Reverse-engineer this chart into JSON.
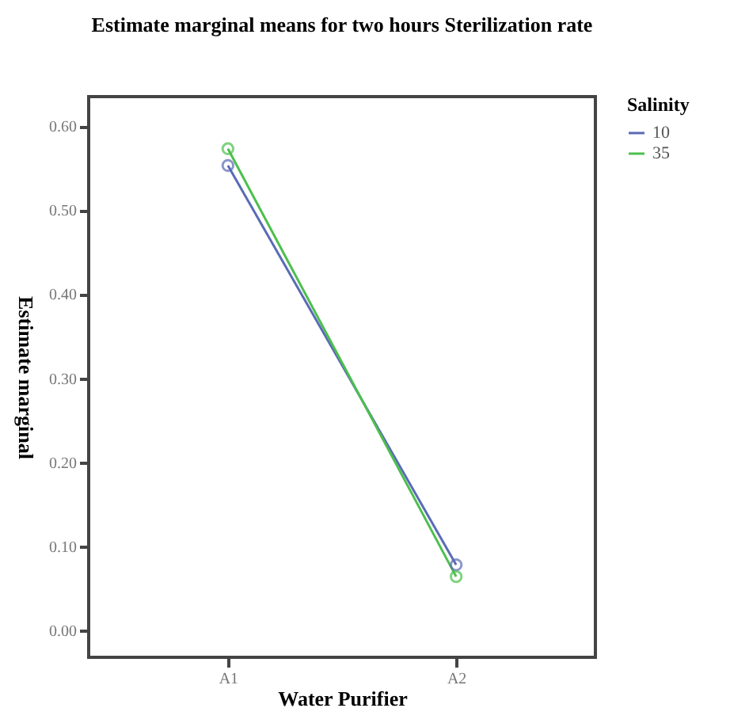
{
  "chart_data": {
    "type": "line",
    "title": "Estimate marginal means for two hours Sterilization rate",
    "xlabel": "Water Purifier",
    "ylabel": "Estimate marginal",
    "legend_title": "Salinity",
    "categories": [
      "A1",
      "A2"
    ],
    "series": [
      {
        "name": "10",
        "color": "#5a6bb5",
        "values": [
          0.553,
          0.078
        ]
      },
      {
        "name": "35",
        "color": "#4cbf4c",
        "values": [
          0.573,
          0.064
        ]
      }
    ],
    "ylim": [
      -0.032,
      0.635
    ],
    "yticks": [
      {
        "value": 0,
        "label": "0.00"
      },
      {
        "value": 0.1,
        "label": "0.10"
      },
      {
        "value": 0.2,
        "label": "0.20"
      },
      {
        "value": 0.3,
        "label": "0.30"
      },
      {
        "value": 0.4,
        "label": "0.40"
      },
      {
        "value": 0.5,
        "label": "0.50"
      },
      {
        "value": 0.6,
        "label": "0.60"
      }
    ],
    "grid": false,
    "legend": "top right",
    "marker": "circle",
    "line_style": "solid"
  }
}
